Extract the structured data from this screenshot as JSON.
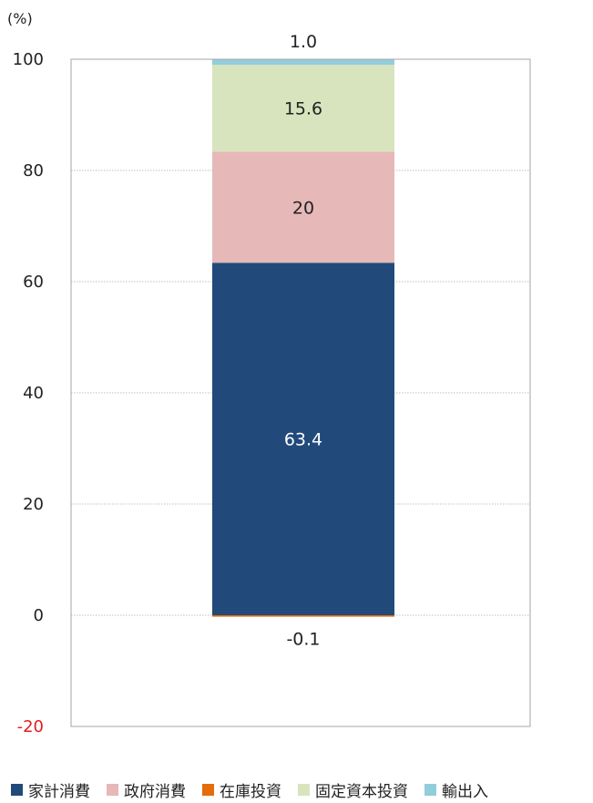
{
  "chart_data": {
    "type": "bar",
    "stacked": true,
    "ylabel": "(%)",
    "ylim": [
      -20,
      100
    ],
    "yticks": [
      100,
      80,
      60,
      40,
      20,
      0,
      -20
    ],
    "grid": true,
    "legend_position": "bottom",
    "series": [
      {
        "name": "家計消費",
        "value": 63.4,
        "label": "63.4",
        "color": "#214a7b",
        "label_color": "#ffffff"
      },
      {
        "name": "政府消費",
        "value": 20,
        "label": "20",
        "color": "#e6b8b7",
        "label_color": "#222222"
      },
      {
        "name": "在庫投資",
        "value": -0.1,
        "label": "-0.1",
        "color": "#e46c0a",
        "label_color": "#222222"
      },
      {
        "name": "固定資本投資",
        "value": 15.6,
        "label": "15.6",
        "color": "#d7e4bd",
        "label_color": "#222222"
      },
      {
        "name": "輸出入",
        "value": 1.0,
        "label": "1.0",
        "color": "#92cddc",
        "label_color": "#222222"
      }
    ]
  }
}
